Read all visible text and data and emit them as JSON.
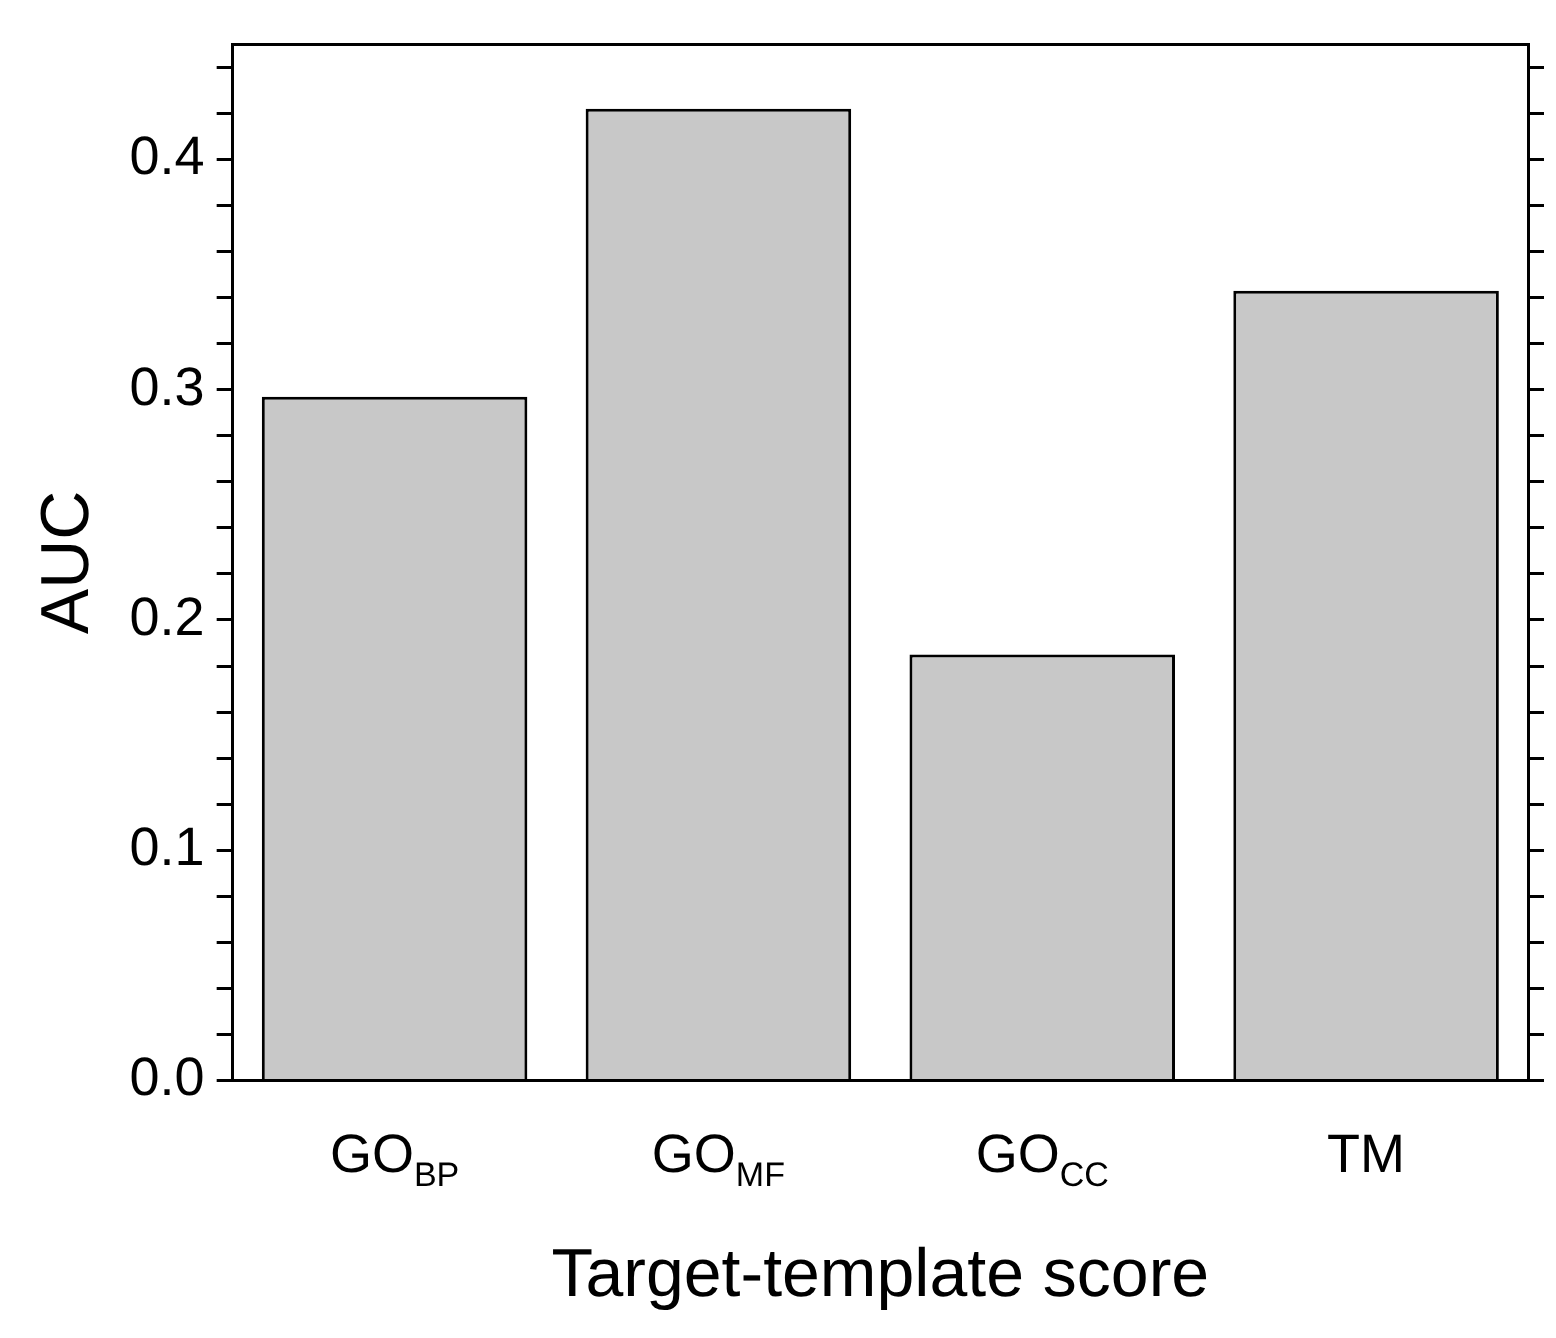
{
  "chart_data": {
    "type": "bar",
    "xlabel": "Target-template score",
    "ylabel": "AUC",
    "categories": [
      "GO$_{BP}$",
      "GO$_{MF}$",
      "GO$_{CC}$",
      "TM"
    ],
    "values": [
      0.297,
      0.422,
      0.185,
      0.343
    ],
    "color": "#c8c8c8",
    "ylim": [
      0,
      0.45
    ],
    "yticks": [
      {
        "value": 0,
        "label": "0.0"
      },
      {
        "value": 0.02,
        "label": null
      },
      {
        "value": 0.04,
        "label": null
      },
      {
        "value": 0.06,
        "label": null
      },
      {
        "value": 0.08,
        "label": null
      },
      {
        "value": 0.1,
        "label": "0.1"
      },
      {
        "value": 0.12,
        "label": null
      },
      {
        "value": 0.14,
        "label": null
      },
      {
        "value": 0.16,
        "label": null
      },
      {
        "value": 0.18,
        "label": null
      },
      {
        "value": 0.2,
        "label": "0.2"
      },
      {
        "value": 0.22,
        "label": null
      },
      {
        "value": 0.24,
        "label": null
      },
      {
        "value": 0.26,
        "label": null
      },
      {
        "value": 0.28,
        "label": null
      },
      {
        "value": 0.3,
        "label": "0.3"
      },
      {
        "value": 0.32,
        "label": null
      },
      {
        "value": 0.34,
        "label": null
      },
      {
        "value": 0.36,
        "label": null
      },
      {
        "value": 0.38,
        "label": null
      },
      {
        "value": 0.4,
        "label": "0.4"
      },
      {
        "value": 0.42,
        "label": null
      },
      {
        "value": 0.44,
        "label": null
      }
    ],
    "grid": false,
    "legend": false
  }
}
